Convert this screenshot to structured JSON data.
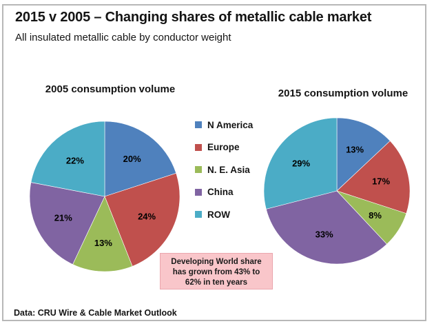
{
  "window": {
    "background": "#ffffff",
    "frame_border_color": "#b7b7b7"
  },
  "header": {
    "title": "2015 v 2005 – Changing shares of metallic cable market",
    "subtitle": "All insulated metallic cable by conductor weight"
  },
  "legend": {
    "position": "center-between-pies",
    "items": [
      {
        "label": "N America",
        "color": "#4F81BD"
      },
      {
        "label": "Europe",
        "color": "#C0504D"
      },
      {
        "label": "N. E. Asia",
        "color": "#9BBB59"
      },
      {
        "label": "China",
        "color": "#8064A2"
      },
      {
        "label": "ROW",
        "color": "#4BACC6"
      }
    ]
  },
  "chart_data": [
    {
      "type": "pie",
      "title": "2005 consumption volume",
      "categories": [
        "N America",
        "Europe",
        "N. E. Asia",
        "China",
        "ROW"
      ],
      "values": [
        20,
        24,
        13,
        21,
        22
      ],
      "labels": [
        "20%",
        "24%",
        "13%",
        "21%",
        "22%"
      ],
      "colors": [
        "#4F81BD",
        "#C0504D",
        "#9BBB59",
        "#8064A2",
        "#4BACC6"
      ],
      "start_angle_deg": 0,
      "direction": "clockwise",
      "label_position": "inside"
    },
    {
      "type": "pie",
      "title": "2015 consumption volume",
      "categories": [
        "N America",
        "Europe",
        "N. E. Asia",
        "China",
        "ROW"
      ],
      "values": [
        13,
        17,
        8,
        33,
        29
      ],
      "labels": [
        "13%",
        "17%",
        "8%",
        "33%",
        "29%"
      ],
      "colors": [
        "#4F81BD",
        "#C0504D",
        "#9BBB59",
        "#8064A2",
        "#4BACC6"
      ],
      "start_angle_deg": 0,
      "direction": "clockwise",
      "label_position": "inside"
    }
  ],
  "callout": {
    "text": "Developing World share has grown from 43% to 62% in ten years",
    "lines": [
      "Developing World share",
      "has grown from 43% to",
      "62% in ten years"
    ],
    "background": "#F9C6CA",
    "border": "#EAA6AE"
  },
  "footer": {
    "source": "Data: CRU Wire & Cable Market Outlook"
  }
}
